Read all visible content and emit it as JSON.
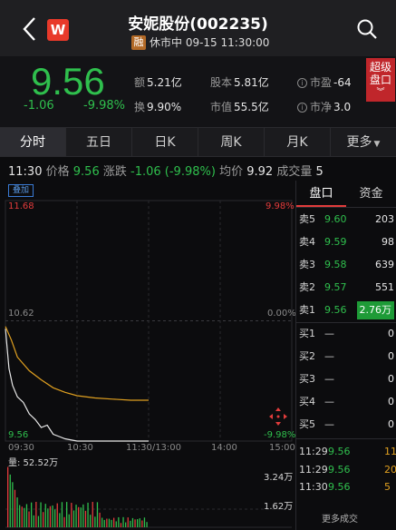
{
  "header": {
    "title": "安妮股份(002235)",
    "badge": "融",
    "status": "休市中 09-15 11:30:00",
    "logo_letter": "W"
  },
  "quote": {
    "price": "9.56",
    "change": "-1.06",
    "change_pct": "-9.98%",
    "metrics": [
      {
        "label": "额",
        "value": "5.21亿"
      },
      {
        "label": "股本",
        "value": "5.81亿"
      },
      {
        "label": "市盈",
        "value": "-64"
      },
      {
        "label": "换",
        "value": "9.90%"
      },
      {
        "label": "市值",
        "value": "55.5亿"
      },
      {
        "label": "市净",
        "value": "3.0"
      }
    ],
    "super_button": {
      "line1": "超级",
      "line2": "盘口"
    }
  },
  "tabs": [
    {
      "label": "分时",
      "active": true
    },
    {
      "label": "五日",
      "active": false
    },
    {
      "label": "日K",
      "active": false
    },
    {
      "label": "周K",
      "active": false
    },
    {
      "label": "月K",
      "active": false
    },
    {
      "label": "更多",
      "active": false
    }
  ],
  "info_line": {
    "time": "11:30",
    "price_label": "价格",
    "price": "9.56",
    "change_label": "涨跌",
    "change": "-1.06 (-9.98%)",
    "avg_label": "均价",
    "avg": "9.92",
    "volume_label": "成交量",
    "volume": "5"
  },
  "chart": {
    "overlay_label": "叠加",
    "y_top_left": "11.68",
    "y_top_right": "9.98%",
    "y_mid_left": "10.62",
    "y_mid_right": "0.00%",
    "y_bot_left": "9.56",
    "y_bot_right": "-9.98%",
    "x_labels": [
      "09:30",
      "10:30",
      "11:30/13:00",
      "14:00",
      "15:00"
    ],
    "volume_label": "量: 52.52万",
    "vol_tick_1": "3.24万",
    "vol_tick_2": "1.62万"
  },
  "chart_data": {
    "type": "line",
    "title": "",
    "xlabel": "",
    "ylabel": "",
    "ylim": [
      9.56,
      11.68
    ],
    "x_range": [
      "09:30",
      "15:00"
    ],
    "series": [
      {
        "x": [
          "09:30",
          "09:33",
          "09:36",
          "09:40",
          "09:45",
          "09:50",
          "09:55",
          "10:00",
          "10:05",
          "10:10",
          "10:15",
          "10:20",
          "10:30",
          "10:45",
          "11:00",
          "11:15",
          "11:30"
        ],
        "values": [
          10.55,
          10.2,
          10.05,
          9.95,
          9.9,
          9.8,
          9.75,
          9.68,
          9.7,
          9.62,
          9.6,
          9.58,
          9.56,
          9.56,
          9.56,
          9.56,
          9.56
        ]
      },
      {
        "x": [
          "09:30",
          "09:35",
          "09:40",
          "09:50",
          "10:00",
          "10:10",
          "10:20",
          "10:30",
          "10:45",
          "11:00",
          "11:15",
          "11:30"
        ],
        "values": [
          10.57,
          10.45,
          10.3,
          10.18,
          10.1,
          10.03,
          9.99,
          9.96,
          9.94,
          9.93,
          9.92,
          9.92
        ]
      }
    ],
    "volume_ylim": [
      0,
      32400
    ],
    "volume_bars_count": 60
  },
  "order_book": {
    "tabs": [
      {
        "label": "盘口",
        "active": true
      },
      {
        "label": "资金",
        "active": false
      }
    ],
    "rows": [
      {
        "label": "卖5",
        "price": "9.60",
        "vol": "203"
      },
      {
        "label": "卖4",
        "price": "9.59",
        "vol": "98"
      },
      {
        "label": "卖3",
        "price": "9.58",
        "vol": "639"
      },
      {
        "label": "卖2",
        "price": "9.57",
        "vol": "551"
      },
      {
        "label": "卖1",
        "price": "9.56",
        "vol": "2.76万",
        "highlight": true
      },
      {
        "label": "买1",
        "price": "—",
        "vol": "0"
      },
      {
        "label": "买2",
        "price": "—",
        "vol": "0"
      },
      {
        "label": "买3",
        "price": "—",
        "vol": "0"
      },
      {
        "label": "买4",
        "price": "—",
        "vol": "0"
      },
      {
        "label": "买5",
        "price": "—",
        "vol": "0"
      }
    ],
    "trades": [
      {
        "time": "11:29",
        "price": "9.56",
        "vol": "11"
      },
      {
        "time": "11:29",
        "price": "9.56",
        "vol": "20"
      },
      {
        "time": "11:30",
        "price": "9.56",
        "vol": "5"
      }
    ],
    "more_label": "更多成交"
  }
}
